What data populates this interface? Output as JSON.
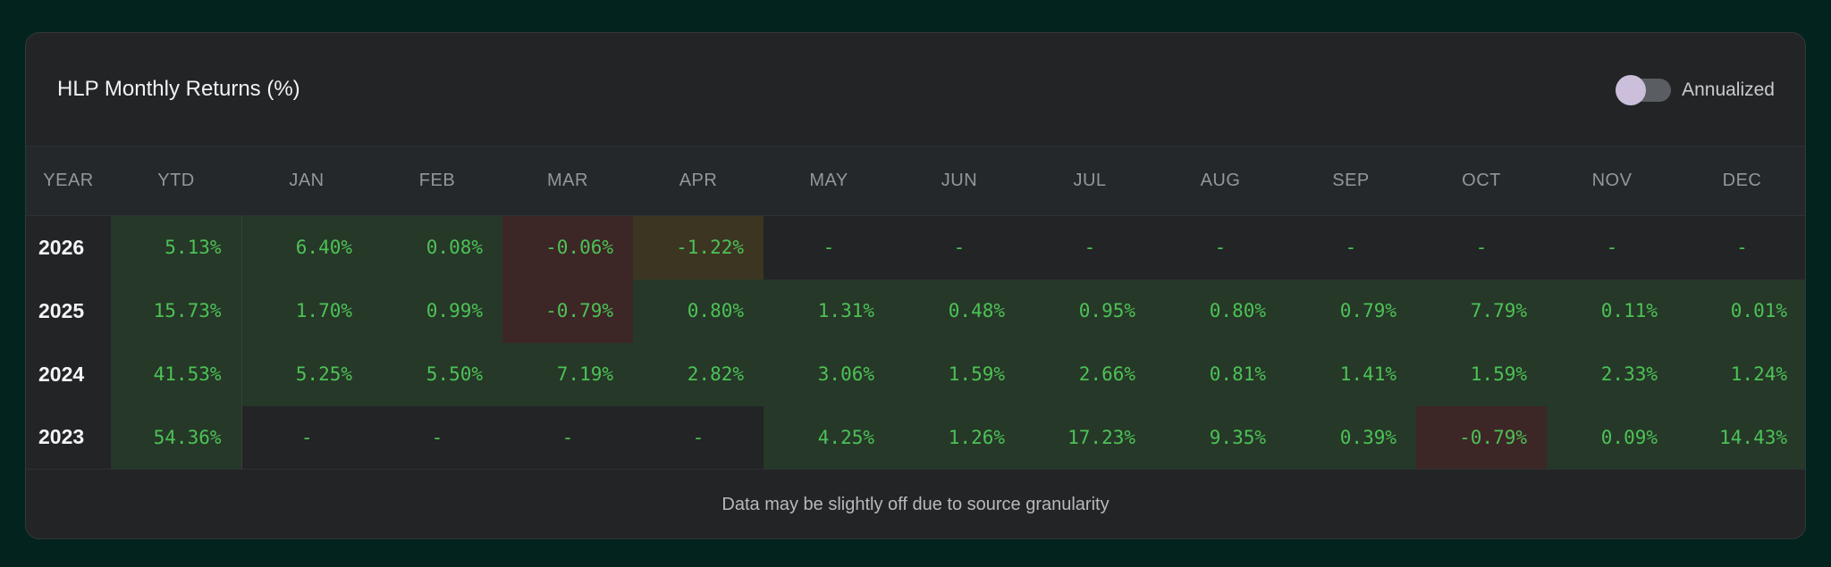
{
  "header": {
    "title": "HLP Monthly Returns (%)",
    "toggle_label": "Annualized",
    "toggle_on": false
  },
  "columns": [
    "YEAR",
    "YTD",
    "JAN",
    "FEB",
    "MAR",
    "APR",
    "MAY",
    "JUN",
    "JUL",
    "AUG",
    "SEP",
    "OCT",
    "NOV",
    "DEC"
  ],
  "rows": [
    {
      "year": "2026",
      "cells": [
        {
          "v": "5.13%",
          "t": "pos"
        },
        {
          "v": "6.40%",
          "t": "pos"
        },
        {
          "v": "0.08%",
          "t": "pos"
        },
        {
          "v": "-0.06%",
          "t": "neg"
        },
        {
          "v": "-1.22%",
          "t": "warn"
        },
        {
          "v": "-",
          "t": "empty"
        },
        {
          "v": "-",
          "t": "empty"
        },
        {
          "v": "-",
          "t": "empty"
        },
        {
          "v": "-",
          "t": "empty"
        },
        {
          "v": "-",
          "t": "empty"
        },
        {
          "v": "-",
          "t": "empty"
        },
        {
          "v": "-",
          "t": "empty"
        },
        {
          "v": "-",
          "t": "empty"
        }
      ]
    },
    {
      "year": "2025",
      "cells": [
        {
          "v": "15.73%",
          "t": "pos"
        },
        {
          "v": "1.70%",
          "t": "pos"
        },
        {
          "v": "0.99%",
          "t": "pos"
        },
        {
          "v": "-0.79%",
          "t": "neg"
        },
        {
          "v": "0.80%",
          "t": "pos"
        },
        {
          "v": "1.31%",
          "t": "pos"
        },
        {
          "v": "0.48%",
          "t": "pos"
        },
        {
          "v": "0.95%",
          "t": "pos"
        },
        {
          "v": "0.80%",
          "t": "pos"
        },
        {
          "v": "0.79%",
          "t": "pos"
        },
        {
          "v": "7.79%",
          "t": "pos"
        },
        {
          "v": "0.11%",
          "t": "pos"
        },
        {
          "v": "0.01%",
          "t": "pos"
        }
      ]
    },
    {
      "year": "2024",
      "cells": [
        {
          "v": "41.53%",
          "t": "pos"
        },
        {
          "v": "5.25%",
          "t": "pos"
        },
        {
          "v": "5.50%",
          "t": "pos"
        },
        {
          "v": "7.19%",
          "t": "pos"
        },
        {
          "v": "2.82%",
          "t": "pos"
        },
        {
          "v": "3.06%",
          "t": "pos"
        },
        {
          "v": "1.59%",
          "t": "pos"
        },
        {
          "v": "2.66%",
          "t": "pos"
        },
        {
          "v": "0.81%",
          "t": "pos"
        },
        {
          "v": "1.41%",
          "t": "pos"
        },
        {
          "v": "1.59%",
          "t": "pos"
        },
        {
          "v": "2.33%",
          "t": "pos"
        },
        {
          "v": "1.24%",
          "t": "pos"
        }
      ]
    },
    {
      "year": "2023",
      "cells": [
        {
          "v": "54.36%",
          "t": "pos"
        },
        {
          "v": "-",
          "t": "empty"
        },
        {
          "v": "-",
          "t": "empty"
        },
        {
          "v": "-",
          "t": "empty"
        },
        {
          "v": "-",
          "t": "empty"
        },
        {
          "v": "4.25%",
          "t": "pos"
        },
        {
          "v": "1.26%",
          "t": "pos"
        },
        {
          "v": "17.23%",
          "t": "pos"
        },
        {
          "v": "9.35%",
          "t": "pos"
        },
        {
          "v": "0.39%",
          "t": "pos"
        },
        {
          "v": "-0.79%",
          "t": "neg"
        },
        {
          "v": "0.09%",
          "t": "pos"
        },
        {
          "v": "14.43%",
          "t": "pos"
        }
      ]
    }
  ],
  "footer": {
    "note": "Data may be slightly off due to source granularity"
  },
  "colors": {
    "positive": "#4cc256",
    "negative": "#ff5a57",
    "warning": "#f5bf2f",
    "positive_bg": "#263828",
    "negative_bg": "#3d2626",
    "warning_bg": "#3c3522"
  }
}
